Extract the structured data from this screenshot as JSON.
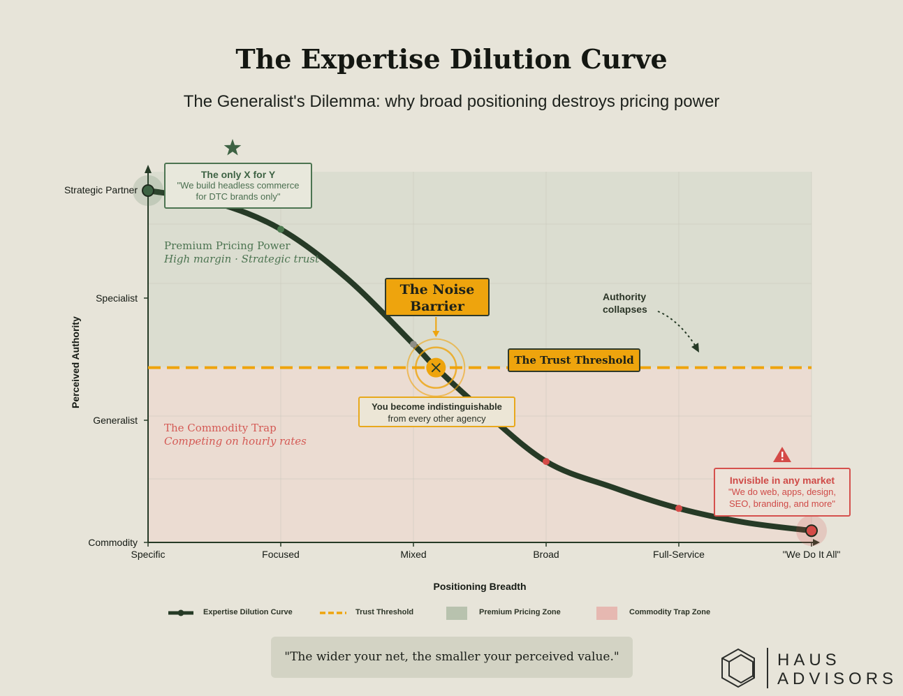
{
  "title": "The Expertise Dilution Curve",
  "subtitle": "The Generalist's Dilemma: why broad positioning destroys pricing power",
  "chart_data": {
    "type": "line",
    "x_categories": [
      "Specific",
      "Focused",
      "Mixed",
      "Broad",
      "Full-Service",
      "\"We Do It All\""
    ],
    "y_categories": [
      "Commodity",
      "Generalist",
      "Specialist",
      "Strategic Partner"
    ],
    "xlabel": "Positioning Breadth",
    "ylabel": "Perceived Authority",
    "xlim": [
      0,
      5
    ],
    "ylim": [
      0,
      3
    ],
    "series": [
      {
        "name": "Expertise Dilution Curve",
        "x": [
          0,
          0.5,
          1,
          1.5,
          2,
          2.17,
          2.5,
          3,
          3.5,
          4,
          4.5,
          5
        ],
        "y": [
          3,
          2.9,
          2.67,
          2.25,
          1.69,
          1.49,
          1.15,
          0.69,
          0.47,
          0.29,
          0.17,
          0.1
        ],
        "markers": [
          {
            "x": 0,
            "y": 3,
            "color": "#3d6243"
          },
          {
            "x": 1,
            "y": 2.67,
            "color": "#4c7a4f"
          },
          {
            "x": 2,
            "y": 1.69,
            "color": "#8e8e86"
          },
          {
            "x": 3,
            "y": 0.69,
            "color": "#d44a47"
          },
          {
            "x": 4,
            "y": 0.29,
            "color": "#d44a47"
          },
          {
            "x": 5,
            "y": 0.1,
            "color": "#d44a47"
          }
        ]
      }
    ],
    "threshold": {
      "name": "Trust Threshold",
      "y": 1.49
    },
    "crossing": {
      "x": 2.17,
      "y": 1.49
    },
    "zones": [
      {
        "name": "Premium Pricing Zone",
        "y_range": [
          1.49,
          3.0
        ],
        "color": "#dbddd0"
      },
      {
        "name": "Commodity Trap Zone",
        "y_range": [
          0,
          1.49
        ],
        "color": "#ebdcd2"
      }
    ],
    "grid": true,
    "legend_position": "bottom"
  },
  "annotations": {
    "top": {
      "heading": "The only X for Y",
      "line1": "\"We build headless commerce",
      "line2": "for DTC brands only\""
    },
    "noise": {
      "line1": "The Noise",
      "line2": "Barrier"
    },
    "threshold": "The Trust Threshold",
    "indistinguishable": {
      "heading": "You become indistinguishable",
      "line2": "from every other agency"
    },
    "invisible": {
      "heading": "Invisible in any market",
      "line1": "\"We do web, apps, design,",
      "line2": "SEO, branding, and more\""
    },
    "authority": {
      "line1": "Authority",
      "line2": "collapses"
    }
  },
  "zones_text": {
    "premium": {
      "title": "Premium Pricing Power",
      "sub": "High margin · Strategic trust"
    },
    "commodity": {
      "title": "The Commodity Trap",
      "sub": "Competing on hourly rates"
    }
  },
  "legend": [
    {
      "label": "Expertise Dilution Curve",
      "kind": "line",
      "color": "#263a26"
    },
    {
      "label": "Trust Threshold",
      "kind": "dash",
      "color": "#eea40d"
    },
    {
      "label": "Premium Pricing Zone",
      "kind": "swatch",
      "color": "#b8c2ae"
    },
    {
      "label": "Commodity Trap Zone",
      "kind": "swatch",
      "color": "#e6b8b1"
    }
  ],
  "quote": "\"The wider your net, the smaller your perceived value.\"",
  "brand": {
    "line1": "HAUS",
    "line2": "ADVISORS"
  },
  "colors": {
    "background": "#e7e4d9",
    "curve": "#263a26",
    "threshold": "#eea40d",
    "premium": "#4c7451",
    "commodity": "#d44a47"
  }
}
